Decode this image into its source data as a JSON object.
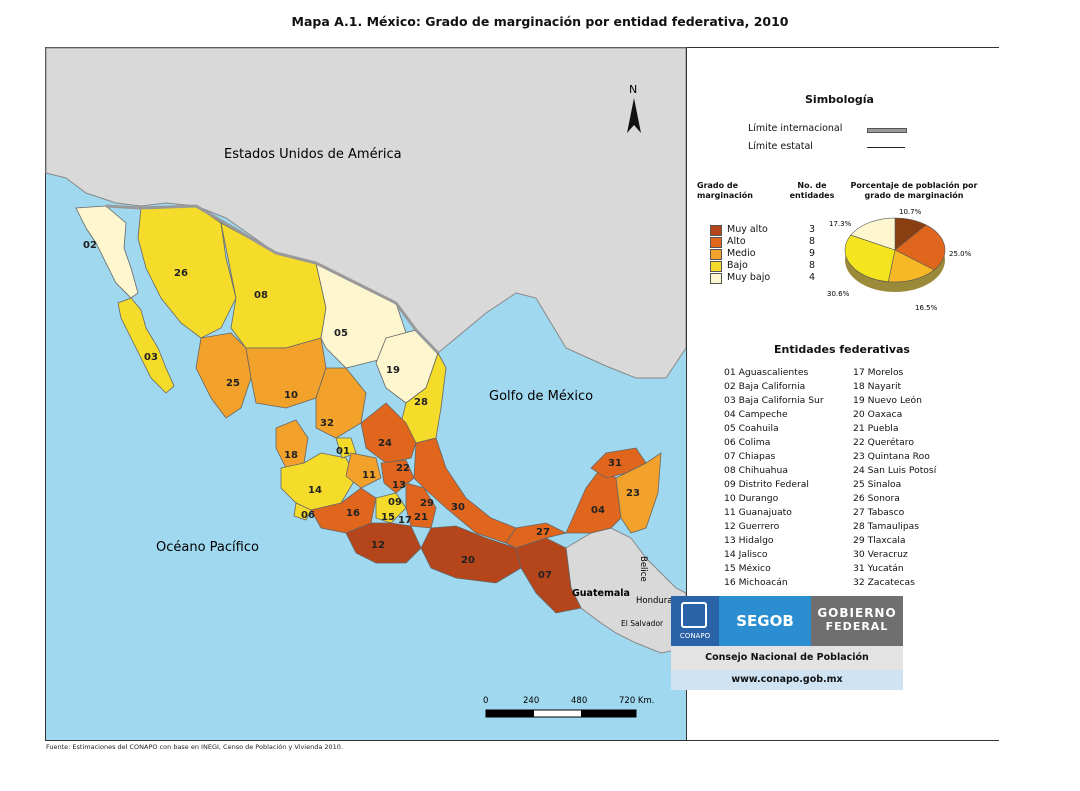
{
  "title": "Mapa A.1. México: Grado de marginación por entidad federativa, 2010",
  "map": {
    "labels": {
      "usa": "Estados Unidos de América",
      "gulf": "Golfo de México",
      "pacific": "Océano Pacífico",
      "guatemala": "Guatemala",
      "belize": "Belice",
      "honduras": "Honduras",
      "salvador": "El Salvador",
      "north": "N"
    },
    "scale": {
      "ticks": [
        "0",
        "240",
        "480",
        "720 Km."
      ]
    },
    "state_labels": [
      "02",
      "26",
      "08",
      "05",
      "19",
      "03",
      "25",
      "10",
      "28",
      "32",
      "24",
      "18",
      "01",
      "11",
      "13",
      "14",
      "06",
      "16",
      "09",
      "15",
      "17",
      "21",
      "30",
      "31",
      "23",
      "04",
      "27",
      "12",
      "20",
      "07",
      "22",
      "29"
    ]
  },
  "legend": {
    "title": "Simbología",
    "international": "Límite internacional",
    "state": "Límite estatal",
    "col_grado": "Grado de marginación",
    "col_num": "No. de entidades",
    "col_pct": "Porcentaje de población por grado de marginación",
    "categories": [
      {
        "label": "Muy alto",
        "count": "3",
        "color": "#b5451b"
      },
      {
        "label": "Alto",
        "count": "8",
        "color": "#e0651d"
      },
      {
        "label": "Medio",
        "count": "9",
        "color": "#f2a22b"
      },
      {
        "label": "Bajo",
        "count": "8",
        "color": "#f5dc2a"
      },
      {
        "label": "Muy bajo",
        "count": "4",
        "color": "#fdf6cf"
      }
    ]
  },
  "chart_data": {
    "type": "pie",
    "title": "Porcentaje de población por grado de marginación",
    "categories": [
      "Muy alto",
      "Alto",
      "Medio",
      "Bajo",
      "Muy bajo"
    ],
    "values": [
      10.7,
      25.0,
      16.5,
      30.6,
      17.3
    ],
    "value_labels": [
      "10.7%",
      "25.0%",
      "16.5%",
      "30.6%",
      "17.3%"
    ],
    "colors": [
      "#8a3f12",
      "#e0651d",
      "#f7b825",
      "#f5e51e",
      "#fdf6cf"
    ]
  },
  "entidades": {
    "title": "Entidades federativas",
    "col1": [
      "01  Aguascalientes",
      "02  Baja California",
      "03  Baja California Sur",
      "04  Campeche",
      "05  Coahuila",
      "06  Colima",
      "07  Chiapas",
      "08  Chihuahua",
      "09  Distrito Federal",
      "10  Durango",
      "11  Guanajuato",
      "12  Guerrero",
      "13  Hidalgo",
      "14  Jalisco",
      "15  México",
      "16  Michoacán"
    ],
    "col2": [
      "17  Morelos",
      "18  Nayarit",
      "19  Nuevo León",
      "20  Oaxaca",
      "21  Puebla",
      "22  Querétaro",
      "23  Quintana Roo",
      "24  San Luis Potosí",
      "25  Sinaloa",
      "26  Sonora",
      "27  Tabasco",
      "28  Tamaulipas",
      "29  Tlaxcala",
      "30  Veracruz",
      "31  Yucatán",
      "32  Zacatecas"
    ]
  },
  "logos": {
    "conapo": "CONAPO",
    "segob": "SEGOB",
    "gobierno1": "GOBIERNO",
    "gobierno2": "FEDERAL",
    "consejo": "Consejo Nacional de Población",
    "web": "www.conapo.gob.mx"
  },
  "source": "Fuente: Estimaciones del CONAPO con base en INEGI, Censo de Población y Vivienda 2010."
}
